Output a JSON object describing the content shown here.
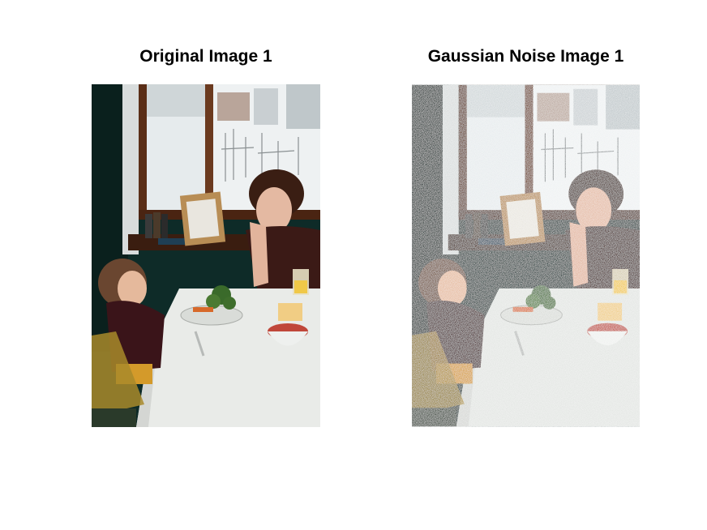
{
  "figure": {
    "background": "#ffffff"
  },
  "subplots": [
    {
      "title": "Original Image 1",
      "image_subject": "woman-and-child-at-dining-table-photo"
    },
    {
      "title": "Gaussian Noise Image 1",
      "image_subject": "woman-and-child-at-dining-table-photo-with-gaussian-noise"
    }
  ]
}
